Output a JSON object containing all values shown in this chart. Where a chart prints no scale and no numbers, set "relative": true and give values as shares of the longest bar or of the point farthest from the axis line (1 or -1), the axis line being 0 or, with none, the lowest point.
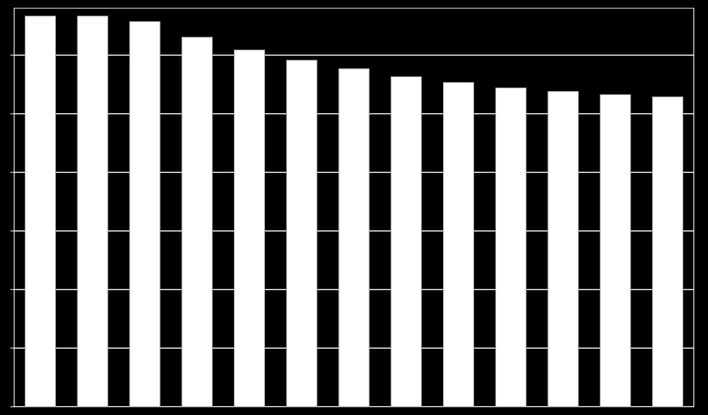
{
  "chart_data": {
    "type": "bar",
    "relative": true,
    "categories": [
      null,
      null,
      null,
      null,
      null,
      null,
      null,
      null,
      null,
      null,
      null,
      null,
      null
    ],
    "values": [
      1,
      1,
      0.986,
      0.946,
      0.913,
      0.887,
      0.865,
      0.845,
      0.83,
      0.816,
      0.807,
      0.799,
      0.793
    ],
    "color": "#ffffff",
    "grid": "y",
    "legend": false
  }
}
